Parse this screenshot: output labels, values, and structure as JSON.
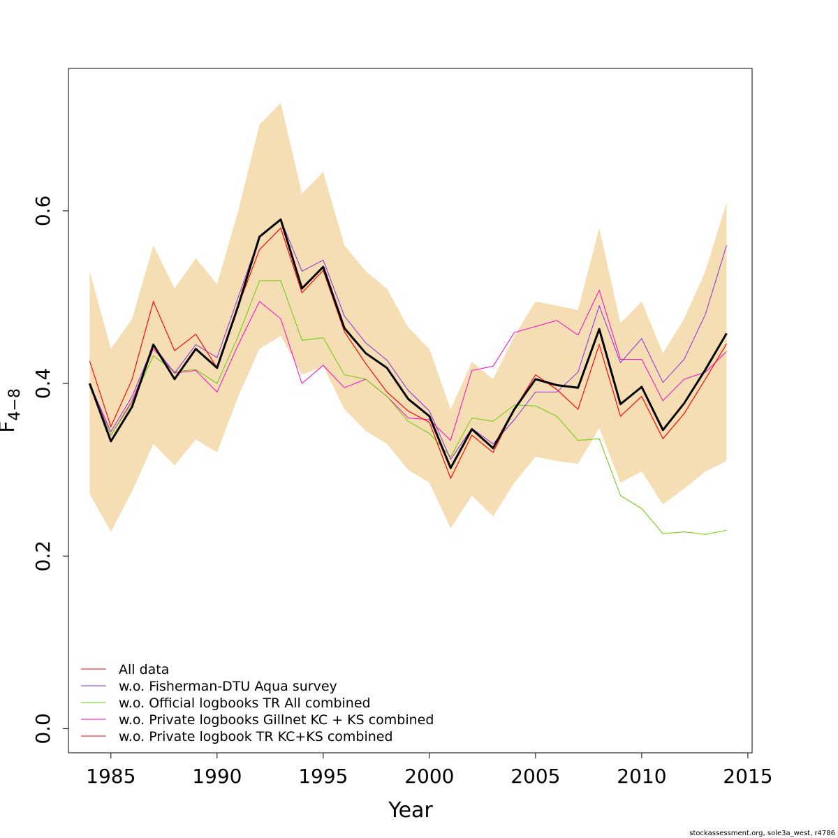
{
  "chart_data": {
    "type": "line",
    "xlabel": "Year",
    "ylabel": "F",
    "ylabel_subscript": "4−8",
    "xlim": [
      1983,
      2015.2
    ],
    "ylim": [
      -0.028,
      0.765
    ],
    "x_ticks": [
      1985,
      1990,
      1995,
      2000,
      2005,
      2010,
      2015
    ],
    "x_tick_labels": [
      "1985",
      "1990",
      "1995",
      "2000",
      "2005",
      "2010",
      "2015"
    ],
    "y_ticks": [
      0.0,
      0.2,
      0.4,
      0.6
    ],
    "y_tick_labels": [
      "0.0",
      "0.2",
      "0.4",
      "0.6"
    ],
    "grid": false,
    "legend_position": "bottom-left",
    "credit": "stockassessment.org, sole3a_west, r4786",
    "x": [
      1984,
      1985,
      1986,
      1987,
      1988,
      1989,
      1990,
      1991,
      1992,
      1993,
      1994,
      1995,
      1996,
      1997,
      1998,
      1999,
      2000,
      2001,
      2002,
      2003,
      2004,
      2005,
      2006,
      2007,
      2008,
      2009,
      2010,
      2011,
      2012,
      2013,
      2014
    ],
    "band": {
      "color": "#f5deb3",
      "upper": [
        0.53,
        0.44,
        0.475,
        0.56,
        0.51,
        0.545,
        0.515,
        0.6,
        0.7,
        0.725,
        0.62,
        0.645,
        0.56,
        0.53,
        0.51,
        0.465,
        0.44,
        0.37,
        0.425,
        0.405,
        0.455,
        0.495,
        0.49,
        0.485,
        0.58,
        0.47,
        0.495,
        0.435,
        0.475,
        0.53,
        0.61
      ],
      "lower": [
        0.272,
        0.228,
        0.275,
        0.33,
        0.305,
        0.335,
        0.32,
        0.385,
        0.44,
        0.455,
        0.41,
        0.42,
        0.37,
        0.345,
        0.33,
        0.3,
        0.285,
        0.232,
        0.27,
        0.246,
        0.285,
        0.315,
        0.31,
        0.307,
        0.348,
        0.285,
        0.298,
        0.26,
        0.278,
        0.298,
        0.31
      ]
    },
    "main_line": {
      "color": "#000000",
      "values": [
        0.4,
        0.333,
        0.373,
        0.445,
        0.405,
        0.44,
        0.418,
        0.49,
        0.57,
        0.59,
        0.51,
        0.535,
        0.464,
        0.435,
        0.418,
        0.382,
        0.362,
        0.302,
        0.347,
        0.325,
        0.37,
        0.405,
        0.398,
        0.395,
        0.463,
        0.376,
        0.396,
        0.346,
        0.377,
        0.416,
        0.458
      ]
    },
    "series": [
      {
        "name": "All data",
        "color": "#ff0000",
        "values": [
          0.426,
          0.35,
          0.405,
          0.495,
          0.438,
          0.457,
          0.418,
          0.49,
          0.555,
          0.58,
          0.505,
          0.531,
          0.46,
          0.423,
          0.39,
          0.368,
          0.355,
          0.29,
          0.34,
          0.32,
          0.37,
          0.41,
          0.393,
          0.37,
          0.445,
          0.362,
          0.385,
          0.336,
          0.365,
          0.405,
          0.446
        ]
      },
      {
        "name": "w.o. Fisherman-DTU Aqua survey",
        "color": "#8a2be2",
        "values": [
          0.4,
          0.344,
          0.385,
          0.444,
          0.412,
          0.445,
          0.43,
          0.5,
          0.57,
          0.59,
          0.53,
          0.543,
          0.478,
          0.447,
          0.427,
          0.392,
          0.368,
          0.312,
          0.348,
          0.33,
          0.358,
          0.39,
          0.39,
          0.413,
          0.49,
          0.424,
          0.452,
          0.401,
          0.428,
          0.48,
          0.56
        ]
      },
      {
        "name": "w.o. Official logbooks TR All combined",
        "color": "#66cc00",
        "values": [
          0.396,
          0.34,
          0.378,
          0.432,
          0.414,
          0.416,
          0.4,
          0.455,
          0.519,
          0.519,
          0.45,
          0.453,
          0.41,
          0.405,
          0.385,
          0.356,
          0.342,
          0.315,
          0.36,
          0.356,
          0.375,
          0.374,
          0.362,
          0.334,
          0.336,
          0.27,
          0.255,
          0.226,
          0.228,
          0.225,
          0.23
        ]
      },
      {
        "name": "w.o. Private logbooks Gillnet KC + KS combined",
        "color": "#ff00cc",
        "values": [
          0.4,
          0.34,
          0.38,
          0.44,
          0.412,
          0.415,
          0.39,
          0.445,
          0.495,
          0.475,
          0.4,
          0.421,
          0.395,
          0.405,
          0.385,
          0.36,
          0.358,
          0.334,
          0.415,
          0.42,
          0.459,
          0.466,
          0.473,
          0.456,
          0.508,
          0.428,
          0.428,
          0.38,
          0.405,
          0.413,
          0.437
        ]
      },
      {
        "name": "w.o. Private logbook TR KC+KS combined",
        "color": "#ff0000",
        "values": [
          0.426,
          0.35,
          0.405,
          0.495,
          0.438,
          0.457,
          0.418,
          0.49,
          0.555,
          0.58,
          0.505,
          0.531,
          0.46,
          0.423,
          0.39,
          0.368,
          0.355,
          0.29,
          0.34,
          0.32,
          0.37,
          0.41,
          0.393,
          0.37,
          0.445,
          0.362,
          0.385,
          0.336,
          0.365,
          0.405,
          0.446
        ]
      }
    ]
  }
}
